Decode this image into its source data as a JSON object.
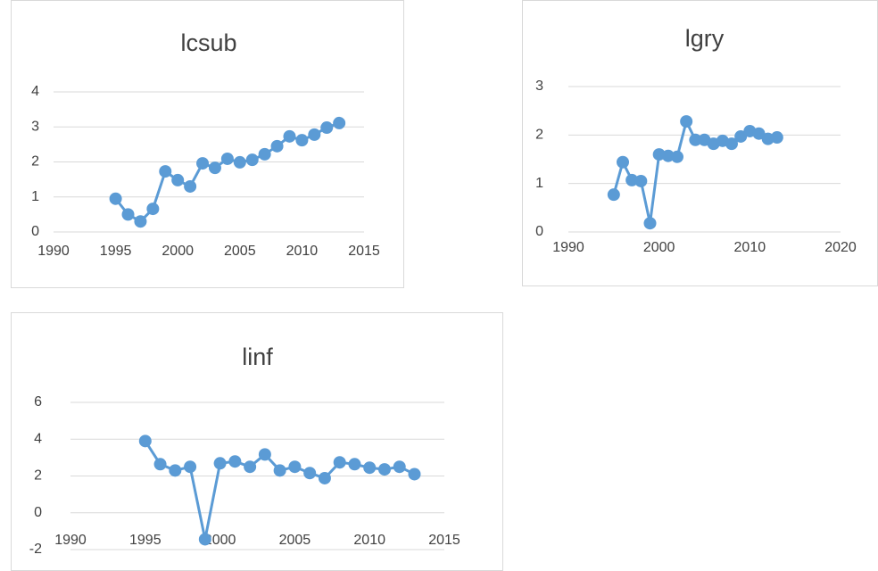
{
  "chart_data": [
    {
      "type": "line",
      "title": "lcsub",
      "color": "#5b9bd5",
      "grid": true,
      "x": [
        1995,
        1996,
        1997,
        1998,
        1999,
        2000,
        2001,
        2002,
        2003,
        2004,
        2005,
        2006,
        2007,
        2008,
        2009,
        2010,
        2011,
        2012,
        2013
      ],
      "values": [
        0.95,
        0.5,
        0.3,
        0.66,
        1.73,
        1.48,
        1.3,
        1.96,
        1.83,
        2.09,
        1.99,
        2.06,
        2.22,
        2.45,
        2.73,
        2.62,
        2.78,
        2.98,
        3.11
      ],
      "xlim": [
        1990,
        2015
      ],
      "xticks": [
        1990,
        1995,
        2000,
        2005,
        2010,
        2015
      ],
      "ylim": [
        0,
        4
      ],
      "yticks": [
        0,
        1,
        2,
        3,
        4
      ]
    },
    {
      "type": "line",
      "title": "lgry",
      "color": "#5b9bd5",
      "grid": true,
      "x": [
        1995,
        1996,
        1997,
        1998,
        1999,
        2000,
        2001,
        2002,
        2003,
        2004,
        2005,
        2006,
        2007,
        2008,
        2009,
        2010,
        2011,
        2012,
        2013
      ],
      "values": [
        0.77,
        1.44,
        1.07,
        1.05,
        0.18,
        1.6,
        1.57,
        1.55,
        2.28,
        1.9,
        1.9,
        1.82,
        1.88,
        1.82,
        1.97,
        2.08,
        2.03,
        1.92,
        1.95
      ],
      "xlim": [
        1990,
        2020
      ],
      "xticks": [
        1990,
        2000,
        2010,
        2020
      ],
      "ylim": [
        0,
        3
      ],
      "yticks": [
        0,
        1,
        2,
        3
      ]
    },
    {
      "type": "line",
      "title": "linf",
      "color": "#5b9bd5",
      "grid": true,
      "x": [
        1995,
        1996,
        1997,
        1998,
        1999,
        2000,
        2001,
        2002,
        2003,
        2004,
        2005,
        2006,
        2007,
        2008,
        2009,
        2010,
        2011,
        2012,
        2013
      ],
      "values": [
        3.9,
        2.64,
        2.3,
        2.5,
        -1.44,
        2.69,
        2.79,
        2.5,
        3.17,
        2.3,
        2.5,
        2.16,
        1.88,
        2.74,
        2.64,
        2.45,
        2.36,
        2.5,
        2.1
      ],
      "xlim": [
        1990,
        2015
      ],
      "xticks": [
        1990,
        1995,
        2000,
        2005,
        2010,
        2015
      ],
      "ylim": [
        -2,
        6
      ],
      "yticks": [
        -2,
        0,
        2,
        4,
        6
      ]
    }
  ]
}
